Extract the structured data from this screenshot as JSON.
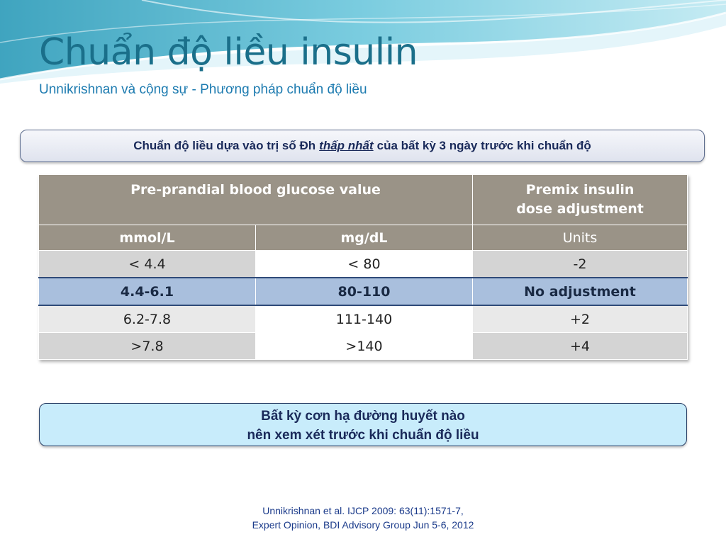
{
  "slide": {
    "title": "Chuẩn độ liều insulin",
    "subtitle": "Unnikrishnan và cộng sự - Phương pháp chuẩn độ liều"
  },
  "banner": {
    "before": "Chuẩn độ liều dựa vào trị số Đh",
    "emphasis": "thấp nhất",
    "after": "của bất kỳ 3 ngày trước khi chuẩn độ"
  },
  "table": {
    "header_glucose": "Pre-prandial blood glucose value",
    "header_dose_line1": "Premix insulin",
    "header_dose_line2": "dose adjustment",
    "sub_mmol": "mmol/L",
    "sub_mgdl": "mg/dL",
    "sub_units": "Units",
    "rows": [
      {
        "mmol": "< 4.4",
        "mgdl": "< 80",
        "units": "-2"
      },
      {
        "mmol": "4.4-6.1",
        "mgdl": "80-110",
        "units": "No adjustment"
      },
      {
        "mmol": "6.2-7.8",
        "mgdl": "111-140",
        "units": "+2"
      },
      {
        "mmol": ">7.8",
        "mgdl": ">140",
        "units": "+4"
      }
    ]
  },
  "note": {
    "line1": "Bất kỳ cơn hạ đường huyết nào",
    "line2": "nên xem xét trước khi chuẩn độ liều"
  },
  "reference": {
    "line1": "Unnikrishnan et al. IJCP 2009: 63(11):1571-7,",
    "line2": "Expert Opinion, BDI Advisory Group Jun 5-6, 2012"
  },
  "colors": {
    "title": "#1a6f8a",
    "header_fill": "#9a9387",
    "highlight_row": "#a9bfdd",
    "note_fill": "#c8ecfb"
  }
}
